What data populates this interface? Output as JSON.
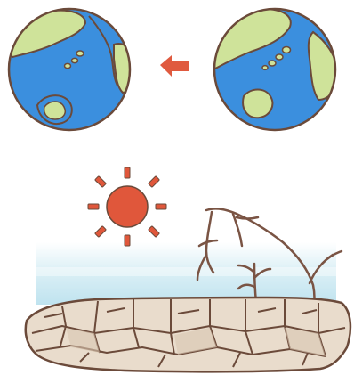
{
  "illustration": {
    "colors": {
      "ocean": "#3b8fde",
      "ocean_deep": "#2f7fd0",
      "land": "#cfe39a",
      "outline": "#6b4a3a",
      "arrow": "#e05a3f",
      "sun": "#e0573b",
      "sky_band": "#bfe3ef",
      "sky_band_light": "#dcf0f6",
      "ground": "#e9dccc",
      "ground_shade": "#d9c6b1",
      "crack": "#6b4a3a",
      "tree": "#7a5444"
    },
    "icons": {
      "earth_left": "globe-with-shrinking-coastline-icon",
      "earth_right": "globe-icon",
      "arrow": "arrow-left-icon",
      "sun": "sun-icon",
      "tree": "dead-tree-icon",
      "ground": "cracked-dry-ground-icon"
    }
  }
}
